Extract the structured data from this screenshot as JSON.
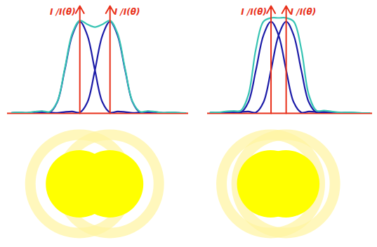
{
  "chart_data": [
    {
      "type": "line",
      "tick_labels": false,
      "xlim": [
        -5.8,
        6.2
      ],
      "ylim": [
        0,
        1.17
      ],
      "x": [
        -5.5,
        -5,
        -4.5,
        -4,
        -3.5,
        -3,
        -2.5,
        -2,
        -1.5,
        -1,
        -0.5,
        0,
        0.5,
        1,
        1.5,
        2,
        2.5,
        3,
        3.5,
        4,
        4.5,
        5,
        5.5,
        6
      ],
      "series": [
        {
          "color": "#1c1ca8",
          "values": [
            0.005,
            0.008,
            0.005,
            0.015,
            0.02,
            0.01,
            0.12,
            0.47,
            0.85,
            1,
            0.85,
            0.47,
            0.12,
            0.01,
            0.02,
            0.015,
            0.005,
            0.008,
            0.005,
            0.002,
            0.002,
            0.002,
            0.002,
            0.002
          ]
        },
        {
          "color": "#1c1ca8",
          "values": [
            0.002,
            0.002,
            0.002,
            0.002,
            0.005,
            0.008,
            0.005,
            0.015,
            0.02,
            0.01,
            0.12,
            0.47,
            0.85,
            1,
            0.85,
            0.47,
            0.12,
            0.01,
            0.02,
            0.015,
            0.005,
            0.008,
            0.005,
            0.002
          ]
        },
        {
          "color": "#38c4b4",
          "values": [
            0.007,
            0.01,
            0.007,
            0.017,
            0.025,
            0.018,
            0.125,
            0.485,
            0.87,
            1.01,
            0.97,
            0.94,
            0.97,
            1.01,
            0.87,
            0.485,
            0.125,
            0.018,
            0.025,
            0.017,
            0.007,
            0.01,
            0.007,
            0.004
          ]
        }
      ],
      "annotations": [
        {
          "x": -1,
          "text": "I /I(θ)"
        },
        {
          "x": 1,
          "text": "I /I(θ)"
        }
      ]
    },
    {
      "type": "line",
      "tick_labels": false,
      "xlim": [
        -4.7,
        6.2
      ],
      "ylim": [
        0,
        1.17
      ],
      "x": [
        -4.5,
        -4,
        -3.5,
        -3,
        -2.5,
        -2,
        -1.5,
        -1,
        -0.5,
        0,
        0.5,
        1,
        1.5,
        2,
        2.5,
        3,
        3.5,
        4,
        4.5,
        5,
        5.5,
        6
      ],
      "series": [
        {
          "color": "#1c1ca8",
          "values": [
            0.008,
            0.005,
            0.015,
            0.02,
            0.01,
            0.12,
            0.47,
            0.85,
            1,
            0.85,
            0.47,
            0.12,
            0.01,
            0.02,
            0.015,
            0.005,
            0.008,
            0.005,
            0.002,
            0.002,
            0.002,
            0.002
          ]
        },
        {
          "color": "#1c1ca8",
          "values": [
            0.002,
            0.005,
            0.008,
            0.005,
            0.015,
            0.02,
            0.01,
            0.12,
            0.47,
            0.85,
            1,
            0.85,
            0.47,
            0.12,
            0.01,
            0.02,
            0.015,
            0.005,
            0.008,
            0.005,
            0.002,
            0.002
          ]
        },
        {
          "color": "#38c4b4",
          "values": [
            0.01,
            0.01,
            0.02,
            0.025,
            0.03,
            0.2,
            0.7,
            1.0,
            1.04,
            1.04,
            1.04,
            1.0,
            0.7,
            0.2,
            0.03,
            0.03,
            0.02,
            0.01,
            0.01,
            0.008,
            0.004,
            0.003
          ]
        }
      ],
      "annotations": [
        {
          "x": -0.5,
          "text": "I /I(θ)"
        },
        {
          "x": 0.5,
          "text": "I /I(θ)"
        }
      ]
    }
  ]
}
